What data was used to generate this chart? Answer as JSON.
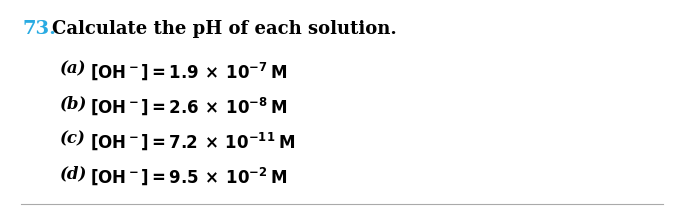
{
  "number": "73.",
  "number_color": "#29abe2",
  "title": "Calculate the pH of each solution.",
  "background_color": "#ffffff",
  "text_color": "#000000",
  "font_size_title": 13,
  "font_size_body": 12,
  "number_font_size": 14,
  "bottom_line_color": "#aaaaaa",
  "line_entries": [
    {
      "label": "(a)",
      "coeff": "1.9",
      "exp": "-7"
    },
    {
      "label": "(b)",
      "coeff": "2.6",
      "exp": "-8"
    },
    {
      "label": "(c)",
      "coeff": "7.2",
      "exp": "-11"
    },
    {
      "label": "(d)",
      "coeff": "9.5",
      "exp": "-2"
    }
  ]
}
